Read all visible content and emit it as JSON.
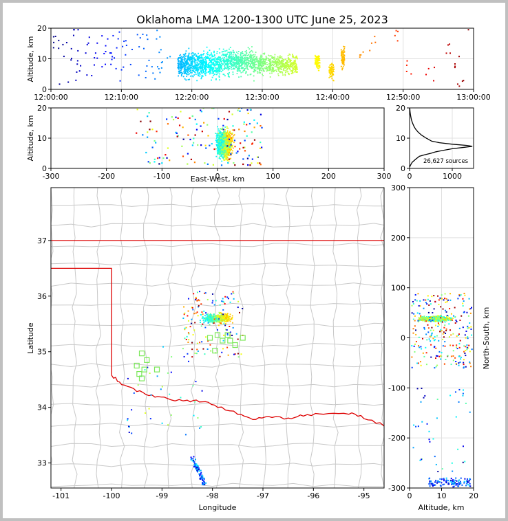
{
  "figure": {
    "title": "Oklahoma LMA 1200-1300 UTC June 25, 2023",
    "sources_label": "26,627 sources"
  },
  "chart_data": [
    {
      "id": "alt-time",
      "type": "scatter",
      "xlabel": "",
      "ylabel": "Altitude, km",
      "xlim": [
        "12:00:00",
        "13:00:00"
      ],
      "ylim": [
        0,
        20
      ],
      "xticks": [
        "12:00:00",
        "12:10:00",
        "12:20:00",
        "12:30:00",
        "12:40:00",
        "12:50:00",
        "13:00:00"
      ],
      "yticks": [
        0,
        10,
        20
      ],
      "color_encoding": "time (blue to red)",
      "activity_clusters": [
        {
          "start_min": 18,
          "end_min": 24,
          "alt_mean": 8,
          "alt_spread": 5,
          "density": "very high"
        },
        {
          "start_min": 24,
          "end_min": 29,
          "alt_mean": 9,
          "alt_spread": 5,
          "density": "high"
        },
        {
          "start_min": 29,
          "end_min": 35,
          "alt_mean": 8,
          "alt_spread": 4,
          "density": "high"
        },
        {
          "start_min": 37.5,
          "end_min": 38.2,
          "alt_mean": 9,
          "alt_spread": 3,
          "density": "medium"
        },
        {
          "start_min": 39.5,
          "end_min": 40.2,
          "alt_mean": 6,
          "alt_spread": 3,
          "density": "medium"
        },
        {
          "start_min": 41.2,
          "end_min": 41.7,
          "alt_mean": 10,
          "alt_spread": 4,
          "density": "medium"
        }
      ],
      "notable_points": [
        {
          "t_min": 1,
          "alt": 15
        },
        {
          "t_min": 3.5,
          "alt": 19
        },
        {
          "t_min": 3.5,
          "alt": 8
        },
        {
          "t_min": 6.5,
          "alt": 10
        },
        {
          "t_min": 8,
          "alt": 12
        },
        {
          "t_min": 10,
          "alt": 14
        },
        {
          "t_min": 13,
          "alt": 16
        },
        {
          "t_min": 15,
          "alt": 7
        },
        {
          "t_min": 44,
          "alt": 12
        },
        {
          "t_min": 46,
          "alt": 15
        },
        {
          "t_min": 49,
          "alt": 18
        },
        {
          "t_min": 51,
          "alt": 7
        },
        {
          "t_min": 54,
          "alt": 5
        },
        {
          "t_min": 56,
          "alt": 14
        },
        {
          "t_min": 57.5,
          "alt": 9
        },
        {
          "t_min": 58,
          "alt": 3
        },
        {
          "t_min": 59.7,
          "alt": 19
        }
      ]
    },
    {
      "id": "alt-ew",
      "type": "scatter",
      "xlabel": "East-West, km",
      "ylabel": "Altitude, km",
      "xlim": [
        -300,
        300
      ],
      "ylim": [
        0,
        20
      ],
      "xticks": [
        -300,
        -200,
        -100,
        0,
        100,
        200,
        300
      ],
      "yticks": [
        0,
        10,
        20
      ],
      "core": {
        "x_mean": 12,
        "x_spread": 12,
        "alt_mean": 8,
        "alt_spread": 5
      },
      "scatter": {
        "x_min": -170,
        "x_max": 80,
        "alt_min": 1,
        "alt_max": 20
      }
    },
    {
      "id": "alt-hist",
      "type": "line",
      "xlabel": "",
      "ylabel": "",
      "xlim": [
        0,
        1500
      ],
      "ylim": [
        0,
        20
      ],
      "xticks": [
        0,
        1000
      ],
      "yticks": [
        0,
        10,
        20
      ],
      "series": [
        {
          "altitude_km": [
            0.5,
            1,
            2,
            3,
            4,
            4.5,
            5,
            5.5,
            6,
            6.5,
            7,
            7.3,
            7.6,
            8,
            8.5,
            9,
            10,
            11,
            12,
            13,
            14,
            15,
            16,
            17,
            18,
            19,
            20
          ],
          "count": [
            5,
            20,
            60,
            140,
            230,
            350,
            500,
            620,
            800,
            1000,
            1300,
            1470,
            1350,
            1000,
            700,
            520,
            390,
            280,
            200,
            140,
            100,
            70,
            45,
            30,
            18,
            10,
            5
          ]
        }
      ]
    },
    {
      "id": "plan-map",
      "type": "scatter",
      "xlabel": "Longitude",
      "ylabel": "Latitude",
      "xlim": [
        -101.2,
        -94.6
      ],
      "ylim": [
        32.55,
        37.95
      ],
      "xticks": [
        -101,
        -100,
        -99,
        -98,
        -97,
        -96,
        -95
      ],
      "yticks": [
        33,
        34,
        35,
        36,
        37
      ],
      "core": {
        "lon": -97.9,
        "lat": 35.6,
        "lon_spread": 0.2,
        "lat_spread": 0.08
      },
      "stations": [
        {
          "lon": -99.4,
          "lat": 34.97
        },
        {
          "lon": -99.3,
          "lat": 34.85
        },
        {
          "lon": -99.5,
          "lat": 34.75
        },
        {
          "lon": -99.35,
          "lat": 34.68
        },
        {
          "lon": -99.1,
          "lat": 34.68
        },
        {
          "lon": -99.45,
          "lat": 34.6
        },
        {
          "lon": -99.4,
          "lat": 34.52
        },
        {
          "lon": -98.05,
          "lat": 35.25
        },
        {
          "lon": -97.9,
          "lat": 35.3
        },
        {
          "lon": -97.8,
          "lat": 35.2
        },
        {
          "lon": -97.65,
          "lat": 35.2
        },
        {
          "lon": -97.55,
          "lat": 35.12
        },
        {
          "lon": -97.4,
          "lat": 35.25
        },
        {
          "lon": -97.95,
          "lat": 35.02
        },
        {
          "lon": -97.7,
          "lat": 35.3
        }
      ],
      "southern_track": {
        "lon_start": -98.4,
        "lat_start": 33.1,
        "lon_end": -98.15,
        "lat_end": 32.6
      }
    },
    {
      "id": "ns-alt",
      "type": "scatter",
      "xlabel": "Altitude, km",
      "ylabel": "North-South, km",
      "xlim": [
        0,
        20
      ],
      "ylim": [
        -300,
        300
      ],
      "xticks": [
        0,
        10,
        20
      ],
      "yticks": [
        -300,
        -200,
        -100,
        0,
        100,
        200,
        300
      ],
      "core": {
        "alt_mean": 8,
        "alt_spread": 5,
        "ns_mean": 38,
        "ns_spread": 6
      }
    }
  ],
  "colors": {
    "ok_border": "#dd0000",
    "county_lines": "#c8c8c8",
    "station": "#7be85a"
  }
}
